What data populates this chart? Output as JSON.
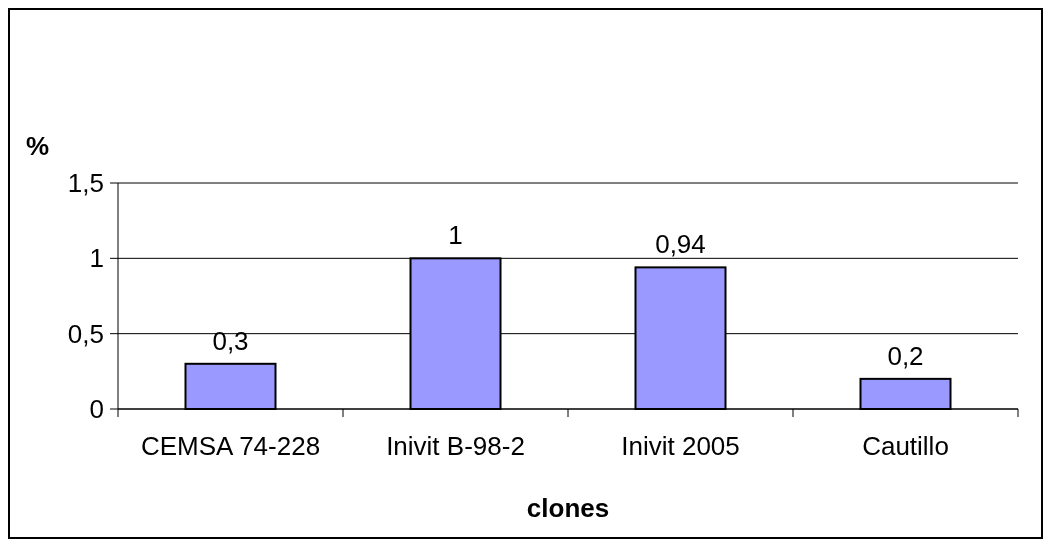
{
  "chart_data": {
    "type": "bar",
    "xlabel": "clones",
    "ylabel": "%",
    "categories": [
      "CEMSA 74-228",
      "Inivit B-98-2",
      "Inivit 2005",
      "Cautillo"
    ],
    "values": [
      0.3,
      1,
      0.94,
      0.2
    ],
    "value_labels": [
      "0,3",
      "1",
      "0,94",
      "0,2"
    ],
    "color": "#9999ff",
    "ylim": [
      0,
      1.5
    ],
    "yticks": [
      {
        "value": 0,
        "label": "0"
      },
      {
        "value": 0.5,
        "label": "0,5"
      },
      {
        "value": 1,
        "label": "1"
      },
      {
        "value": 1.5,
        "label": "1,5"
      }
    ],
    "grid": "y"
  }
}
